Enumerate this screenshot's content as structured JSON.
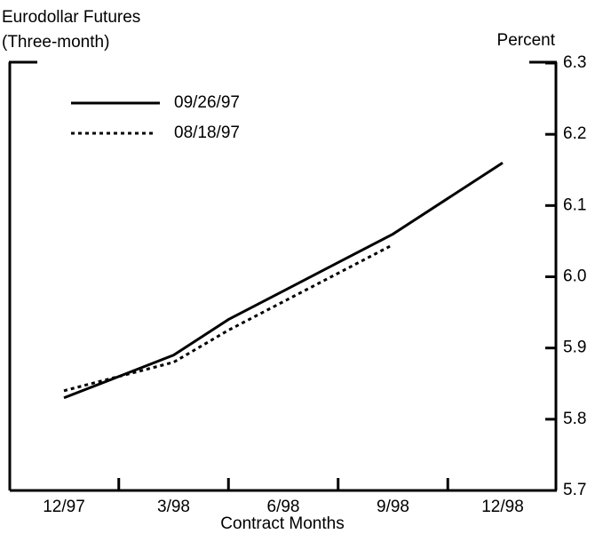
{
  "chart_data": {
    "type": "line",
    "title": "Eurodollar Futures",
    "subtitle": "(Three-month)",
    "y_label": "Percent",
    "x_label": "Contract Months",
    "categories": [
      "12/97",
      null,
      "3/98",
      null,
      "6/98",
      null,
      "9/98",
      null,
      "12/98"
    ],
    "series": [
      {
        "name": "09/26/97",
        "color": "#000000",
        "style": "solid",
        "values": [
          5.83,
          5.86,
          5.89,
          5.94,
          5.98,
          6.02,
          6.06,
          6.11,
          6.16
        ]
      },
      {
        "name": "08/18/97",
        "color": "#000000",
        "style": "dotted",
        "values": [
          5.84,
          5.86,
          5.88,
          5.925,
          5.965,
          6.005,
          6.045,
          null,
          null
        ]
      }
    ],
    "ylim": [
      5.7,
      6.3
    ],
    "yticks": [
      {
        "value": 5.7,
        "label": "5.7"
      },
      {
        "value": 5.8,
        "label": "5.8"
      },
      {
        "value": 5.9,
        "label": "5.9"
      },
      {
        "value": 6.0,
        "label": "6.0"
      },
      {
        "value": 6.1,
        "label": "6.1"
      },
      {
        "value": 6.2,
        "label": "6.2"
      },
      {
        "value": 6.3,
        "label": "6.3"
      }
    ]
  }
}
